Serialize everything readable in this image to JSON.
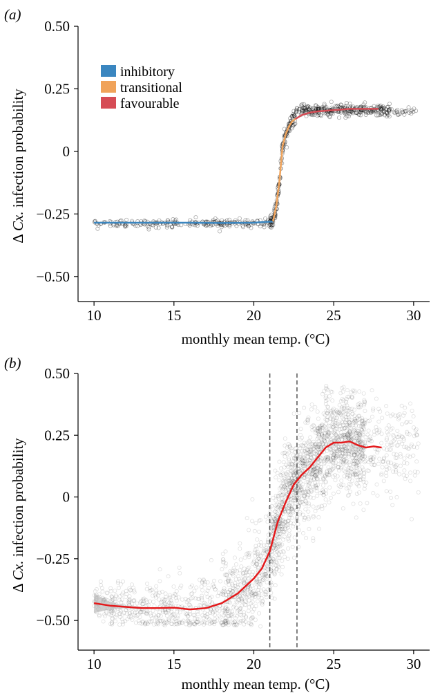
{
  "colors": {
    "inhibitory": "#3a86c0",
    "transitional": "#f0a35a",
    "favourable": "#d64c55",
    "points": "#000000",
    "smooth": "#e41a1c",
    "ci": "#bdbdbd",
    "vline": "#555555"
  },
  "chart_data": [
    {
      "type": "scatter",
      "panel_label": "(a)",
      "ylabel_prefix": "Δ ",
      "ylabel_italic": "Cx.",
      "ylabel_suffix": " infection probability",
      "xlabel": "monthly mean temp. (°C)",
      "xlim": [
        9,
        31
      ],
      "ylim": [
        -0.6,
        0.5
      ],
      "x_ticks": [
        10,
        15,
        20,
        25,
        30
      ],
      "x_tick_labels": [
        "10",
        "15",
        "20",
        "25",
        "30"
      ],
      "y_ticks": [
        0.5,
        0.25,
        0,
        -0.25,
        -0.5
      ],
      "y_tick_labels": [
        "0.50",
        "0.25",
        "0",
        "−0.25",
        "−0.50"
      ],
      "legend": {
        "placement": "top-left",
        "entries": [
          "inhibitory",
          "transitional",
          "favourable"
        ]
      },
      "series": [
        {
          "name": "inhibitory",
          "x": [
            10,
            12,
            14,
            16,
            18,
            20,
            21.2
          ],
          "y": [
            -0.285,
            -0.285,
            -0.285,
            -0.285,
            -0.286,
            -0.285,
            -0.28
          ]
        },
        {
          "name": "transitional",
          "x": [
            21.2,
            21.4,
            21.6,
            21.8,
            22.0,
            22.2,
            22.4,
            22.6
          ],
          "y": [
            -0.28,
            -0.22,
            -0.12,
            0.02,
            0.07,
            0.1,
            0.12,
            0.13
          ]
        },
        {
          "name": "favourable",
          "x": [
            22.6,
            23.0,
            23.5,
            24,
            25,
            26,
            27,
            27.8
          ],
          "y": [
            0.13,
            0.145,
            0.155,
            0.16,
            0.165,
            0.17,
            0.17,
            0.17
          ]
        }
      ],
      "point_cloud": [
        {
          "x_range": [
            10,
            21
          ],
          "y_center": -0.287,
          "y_spread": 0.008,
          "n": 220
        },
        {
          "x_range": [
            21,
            22.6
          ],
          "y_center": null,
          "y_spread": 0.015,
          "n": 160,
          "follows": "transitional"
        },
        {
          "x_range": [
            22.6,
            28.5
          ],
          "y_center": 0.165,
          "y_spread": 0.012,
          "n": 300
        },
        {
          "x_range": [
            28.5,
            30.2
          ],
          "y_center": 0.16,
          "y_spread": 0.008,
          "n": 25
        }
      ]
    },
    {
      "type": "scatter",
      "panel_label": "(b)",
      "ylabel_prefix": "Δ ",
      "ylabel_italic": "Cx.",
      "ylabel_suffix": " infection probability",
      "xlabel": "monthly mean temp. (°C)",
      "xlim": [
        9,
        31
      ],
      "ylim": [
        -0.62,
        0.5
      ],
      "x_ticks": [
        10,
        15,
        20,
        25,
        30
      ],
      "x_tick_labels": [
        "10",
        "15",
        "20",
        "25",
        "30"
      ],
      "y_ticks": [
        0.5,
        0.25,
        0,
        -0.25,
        -0.5
      ],
      "y_tick_labels": [
        "0.50",
        "0.25",
        "0",
        "−0.25",
        "−0.50"
      ],
      "vlines": [
        21.0,
        22.7
      ],
      "smooth": {
        "x": [
          10,
          11,
          12,
          13,
          14,
          15,
          16,
          17,
          18,
          19,
          20,
          20.5,
          21,
          21.5,
          22,
          22.5,
          23,
          23.5,
          24,
          24.5,
          25,
          25.5,
          26,
          26.5,
          27,
          27.5,
          28
        ],
        "y": [
          -0.43,
          -0.44,
          -0.445,
          -0.45,
          -0.45,
          -0.448,
          -0.455,
          -0.45,
          -0.43,
          -0.39,
          -0.33,
          -0.29,
          -0.22,
          -0.1,
          -0.02,
          0.05,
          0.09,
          0.12,
          0.16,
          0.2,
          0.22,
          0.22,
          0.225,
          0.21,
          0.2,
          0.205,
          0.2
        ]
      },
      "ci_band": {
        "x": [
          10,
          11,
          12,
          13
        ],
        "upper": [
          -0.39,
          -0.425,
          -0.44,
          -0.445
        ],
        "lower": [
          -0.47,
          -0.455,
          -0.45,
          -0.455
        ]
      }
    }
  ]
}
